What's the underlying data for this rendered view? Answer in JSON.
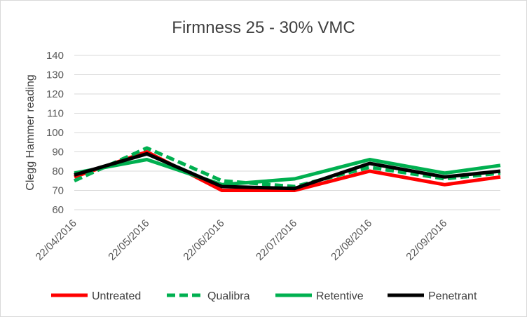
{
  "chart_data": {
    "type": "line",
    "title": "Firmness 25 - 30% VMC",
    "xlabel": "",
    "ylabel": "Clegg Hammer reading",
    "ylim": [
      60,
      140
    ],
    "yticks": [
      60,
      70,
      80,
      90,
      100,
      110,
      120,
      130,
      140
    ],
    "xlim": [
      "2016-04-22",
      "2016-10-15"
    ],
    "xtick_labels": [
      "22/04/2016",
      "22/05/2016",
      "22/06/2016",
      "22/07/2016",
      "22/08/2016",
      "22/09/2016"
    ],
    "xtick_dates": [
      "2016-04-22",
      "2016-05-22",
      "2016-06-22",
      "2016-07-22",
      "2016-08-22",
      "2016-09-22"
    ],
    "grid": "horizontal",
    "legend_position": "bottom",
    "series": [
      {
        "name": "Untreated",
        "color": "#ff0000",
        "dash": "solid",
        "points": [
          {
            "x": "2016-04-22",
            "y": 77
          },
          {
            "x": "2016-05-22",
            "y": 90
          },
          {
            "x": "2016-06-22",
            "y": 70
          },
          {
            "x": "2016-07-22",
            "y": 70
          },
          {
            "x": "2016-08-22",
            "y": 80
          },
          {
            "x": "2016-09-22",
            "y": 73
          },
          {
            "x": "2016-10-15",
            "y": 77
          }
        ]
      },
      {
        "name": "Qualibra",
        "color": "#00b050",
        "dash": "dashed",
        "points": [
          {
            "x": "2016-04-22",
            "y": 75
          },
          {
            "x": "2016-05-22",
            "y": 92
          },
          {
            "x": "2016-06-22",
            "y": 75
          },
          {
            "x": "2016-07-22",
            "y": 72
          },
          {
            "x": "2016-08-22",
            "y": 82
          },
          {
            "x": "2016-09-22",
            "y": 76
          },
          {
            "x": "2016-10-15",
            "y": 79
          }
        ]
      },
      {
        "name": "Retentive",
        "color": "#00b050",
        "dash": "solid",
        "points": [
          {
            "x": "2016-04-22",
            "y": 79
          },
          {
            "x": "2016-05-22",
            "y": 86
          },
          {
            "x": "2016-06-22",
            "y": 73
          },
          {
            "x": "2016-07-22",
            "y": 76
          },
          {
            "x": "2016-08-22",
            "y": 86
          },
          {
            "x": "2016-09-22",
            "y": 79
          },
          {
            "x": "2016-10-15",
            "y": 83
          }
        ]
      },
      {
        "name": "Penetrant",
        "color": "#000000",
        "dash": "solid",
        "points": [
          {
            "x": "2016-04-22",
            "y": 78
          },
          {
            "x": "2016-05-22",
            "y": 89
          },
          {
            "x": "2016-06-22",
            "y": 72
          },
          {
            "x": "2016-07-22",
            "y": 71
          },
          {
            "x": "2016-08-22",
            "y": 84
          },
          {
            "x": "2016-09-22",
            "y": 77
          },
          {
            "x": "2016-10-15",
            "y": 80
          }
        ]
      }
    ]
  }
}
